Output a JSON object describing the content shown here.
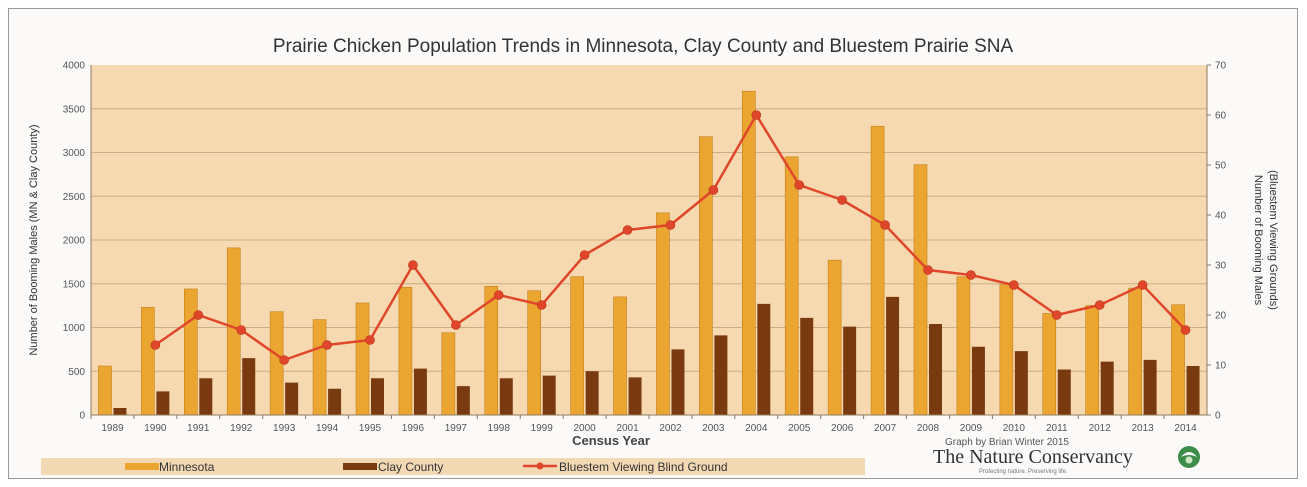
{
  "chart_data": {
    "type": "bar",
    "title": "Prairie Chicken Population Trends in Minnesota, Clay County and Bluestem Prairie SNA",
    "xlabel": "Census Year",
    "ylabel": "Number of Booming Males (MN & Clay County)",
    "ylabel_right": [
      "Number of Booming Males",
      "(Bluestem Viewing Grounds)"
    ],
    "ylim": [
      0,
      4000
    ],
    "ylim_right": [
      0,
      70
    ],
    "yticks": [
      "0",
      "500",
      "1000",
      "1500",
      "2000",
      "2500",
      "3000",
      "3500",
      "4000"
    ],
    "yticks_right": [
      "0",
      "10",
      "20",
      "30",
      "40",
      "50",
      "60",
      "70"
    ],
    "categories": [
      "1989",
      "1990",
      "1991",
      "1992",
      "1993",
      "1994",
      "1995",
      "1996",
      "1997",
      "1998",
      "1999",
      "2000",
      "2001",
      "2002",
      "2003",
      "2004",
      "2005",
      "2006",
      "2007",
      "2008",
      "2009",
      "2010",
      "2011",
      "2012",
      "2013",
      "2014"
    ],
    "series": [
      {
        "name": "Minnesota",
        "kind": "bar",
        "axis": "left",
        "color": "#eba531",
        "values": [
          560,
          1230,
          1440,
          1910,
          1180,
          1090,
          1280,
          1460,
          940,
          1470,
          1420,
          1580,
          1350,
          2310,
          3180,
          3700,
          2950,
          1770,
          3300,
          2860,
          1580,
          1490,
          1160,
          1250,
          1450,
          1260
        ]
      },
      {
        "name": "Clay County",
        "kind": "bar",
        "axis": "left",
        "color": "#7a3a10",
        "values": [
          80,
          270,
          420,
          650,
          370,
          300,
          420,
          530,
          330,
          420,
          450,
          500,
          430,
          750,
          910,
          1270,
          1110,
          1010,
          1350,
          1040,
          780,
          730,
          520,
          610,
          630,
          560
        ]
      },
      {
        "name": "Bluestem Viewing Blind Ground",
        "kind": "line",
        "axis": "right",
        "color": "#e0472a",
        "values": [
          null,
          14,
          20,
          17,
          11,
          14,
          15,
          30,
          18,
          24,
          22,
          32,
          37,
          38,
          45,
          60,
          46,
          43,
          38,
          29,
          28,
          26,
          20,
          22,
          26,
          17
        ]
      }
    ],
    "legend_position": "bottom",
    "grid": true
  },
  "credit": {
    "author": "Graph by  Brian Winter 2015",
    "organization": "The Nature Conservancy",
    "tagline": "Protecting nature. Preserving life."
  },
  "colors": {
    "plot_background": "#f6d9b0",
    "legend_background": "#f3d8b4",
    "gridline": "#c9ad86",
    "logo_green": "#3d8c4a"
  },
  "icons": [
    "nature-conservancy-logo-icon"
  ]
}
